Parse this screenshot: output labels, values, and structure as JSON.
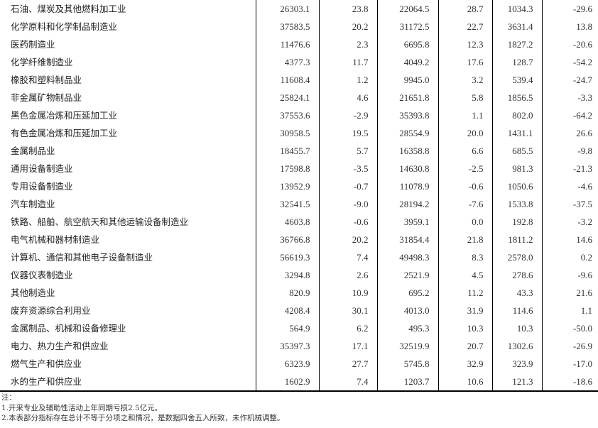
{
  "rows": [
    {
      "name": "石油、煤炭及其他燃料加工业",
      "values": [
        "26303.1",
        "23.8",
        "22064.5",
        "28.7",
        "1034.3",
        "-29.6"
      ]
    },
    {
      "name": "化学原料和化学制品制造业",
      "values": [
        "37583.5",
        "20.2",
        "31172.5",
        "22.7",
        "3631.4",
        "13.8"
      ]
    },
    {
      "name": "医药制造业",
      "values": [
        "11476.6",
        "2.3",
        "6695.8",
        "12.3",
        "1827.2",
        "-20.6"
      ]
    },
    {
      "name": "化学纤维制造业",
      "values": [
        "4377.3",
        "11.7",
        "4049.2",
        "17.6",
        "128.7",
        "-54.2"
      ]
    },
    {
      "name": "橡胶和塑料制品业",
      "values": [
        "11608.4",
        "1.2",
        "9945.0",
        "3.2",
        "539.4",
        "-24.7"
      ]
    },
    {
      "name": "非金属矿物制品业",
      "values": [
        "25824.1",
        "4.6",
        "21651.8",
        "5.8",
        "1856.5",
        "-3.3"
      ]
    },
    {
      "name": "黑色金属冶炼和压延加工业",
      "values": [
        "37553.6",
        "-2.9",
        "35393.8",
        "1.1",
        "802.0",
        "-64.2"
      ]
    },
    {
      "name": "有色金属冶炼和压延加工业",
      "values": [
        "30958.5",
        "19.5",
        "28554.9",
        "20.0",
        "1431.1",
        "26.6"
      ]
    },
    {
      "name": "金属制品业",
      "values": [
        "18455.7",
        "5.7",
        "16358.8",
        "6.6",
        "685.5",
        "-9.8"
      ]
    },
    {
      "name": "通用设备制造业",
      "values": [
        "17598.8",
        "-3.5",
        "14630.8",
        "-2.5",
        "981.3",
        "-21.3"
      ]
    },
    {
      "name": "专用设备制造业",
      "values": [
        "13952.9",
        "-0.7",
        "11078.9",
        "-0.6",
        "1050.6",
        "-4.6"
      ]
    },
    {
      "name": "汽车制造业",
      "values": [
        "32541.5",
        "-9.0",
        "28194.2",
        "-7.6",
        "1533.8",
        "-37.5"
      ]
    },
    {
      "name": "铁路、船舶、航空航天和其他运输设备制造业",
      "values": [
        "4603.8",
        "-0.6",
        "3959.1",
        "0.0",
        "192.8",
        "-3.2"
      ]
    },
    {
      "name": "电气机械和器材制造业",
      "values": [
        "36766.8",
        "20.2",
        "31854.4",
        "21.8",
        "1811.2",
        "14.6"
      ]
    },
    {
      "name": "计算机、通信和其他电子设备制造业",
      "values": [
        "56619.3",
        "7.4",
        "49498.3",
        "8.3",
        "2578.0",
        "0.2"
      ]
    },
    {
      "name": "仪器仪表制造业",
      "values": [
        "3294.8",
        "2.6",
        "2521.9",
        "4.5",
        "278.6",
        "-9.6"
      ]
    },
    {
      "name": "其他制造业",
      "values": [
        "820.9",
        "10.9",
        "695.2",
        "11.2",
        "43.3",
        "21.6"
      ]
    },
    {
      "name": "废弃资源综合利用业",
      "values": [
        "4208.4",
        "30.1",
        "4013.0",
        "31.9",
        "114.6",
        "1.1"
      ]
    },
    {
      "name": "金属制品、机械和设备修理业",
      "values": [
        "564.9",
        "6.2",
        "495.3",
        "10.3",
        "10.3",
        "-50.0"
      ]
    },
    {
      "name": "电力、热力生产和供应业",
      "values": [
        "35397.3",
        "17.1",
        "32519.9",
        "20.7",
        "1302.6",
        "-26.9"
      ]
    },
    {
      "name": "燃气生产和供应业",
      "values": [
        "6323.9",
        "27.7",
        "5745.8",
        "32.9",
        "323.9",
        "-17.0"
      ]
    },
    {
      "name": "水的生产和供应业",
      "values": [
        "1602.9",
        "7.4",
        "1203.7",
        "10.6",
        "121.3",
        "-18.6"
      ]
    }
  ],
  "notes": {
    "title": "注：",
    "lines": [
      "1.开采专业及辅助性活动上年同期亏损2.5亿元。",
      "2.本表部分指标存在总计不等于分项之和情况，是数据四舍五入所致，未作机械调整。"
    ]
  }
}
